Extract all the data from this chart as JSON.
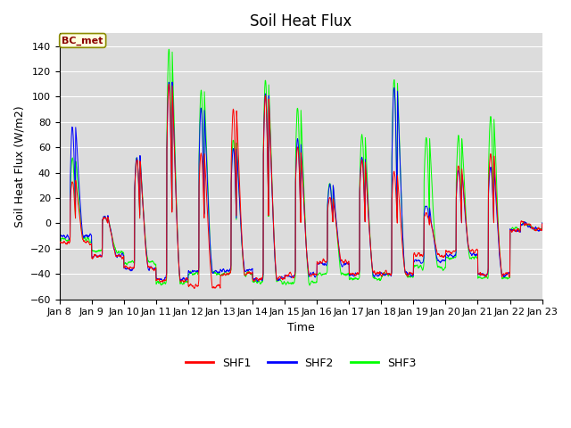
{
  "title": "Soil Heat Flux",
  "ylabel": "Soil Heat Flux (W/m2)",
  "xlabel": "Time",
  "annotation_text": "BC_met",
  "legend_labels": [
    "SHF1",
    "SHF2",
    "SHF3"
  ],
  "colors": {
    "SHF1": "red",
    "SHF2": "blue",
    "SHF3": "lime"
  },
  "ylim": [
    -60,
    150
  ],
  "yticks": [
    -60,
    -40,
    -20,
    0,
    20,
    40,
    60,
    80,
    100,
    120,
    140
  ],
  "n_days": 15,
  "start_day": 8,
  "points_per_day": 144,
  "bg_color": "#dcdcdc",
  "fig_bg_color": "#ffffff",
  "title_fontsize": 12,
  "label_fontsize": 9,
  "tick_fontsize": 8,
  "linewidth": 0.7
}
